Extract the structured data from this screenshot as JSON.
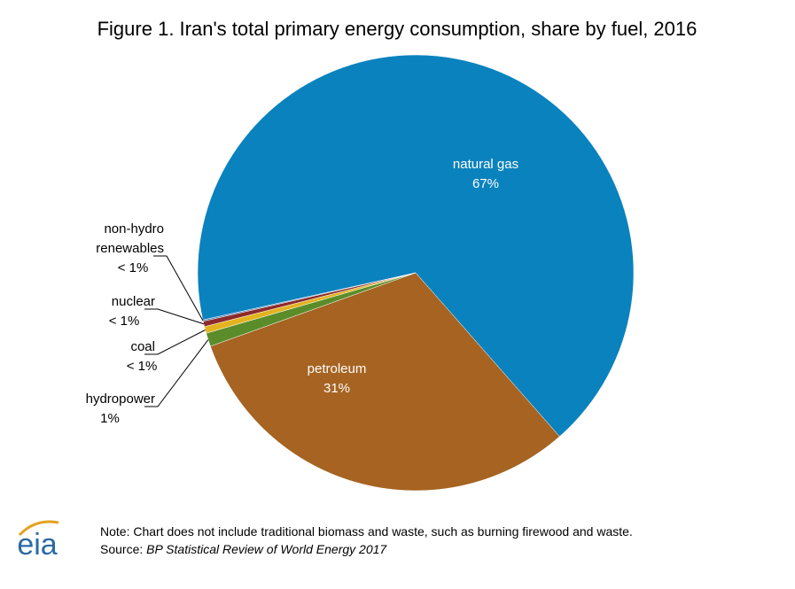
{
  "chart_data": {
    "type": "pie",
    "title": "Figure 1. Iran's total primary energy consumption, share by fuel, 2016",
    "categories": [
      "natural gas",
      "petroleum",
      "hydropower",
      "coal",
      "nuclear",
      "non-hydro renewables"
    ],
    "values": [
      67,
      31,
      1,
      0.5,
      0.4,
      0.1
    ],
    "value_labels": [
      "67%",
      "31%",
      "1%",
      "< 1%",
      "< 1%",
      "< 1%"
    ],
    "colors": [
      "#0a82be",
      "#a66321",
      "#5b8c2a",
      "#e3b31e",
      "#8e2a2a",
      "#4f7fb5"
    ]
  },
  "footer": {
    "logo": "eia",
    "note": "Note: Chart does not include traditional biomass and waste, such as burning firewood and waste.",
    "source_label": "Source: ",
    "source": "BP Statistical Review of World Energy 2017"
  }
}
